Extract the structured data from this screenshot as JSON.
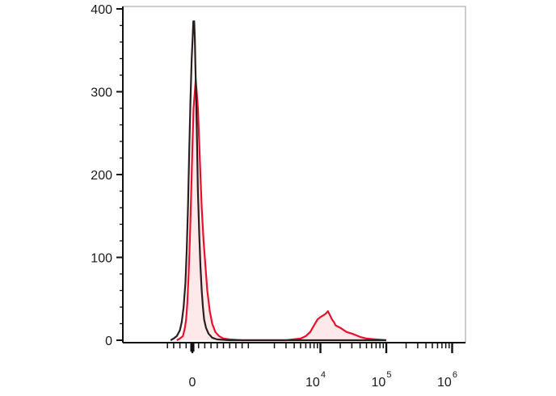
{
  "chart_data": {
    "type": "histogram",
    "title": "",
    "xlabel": "",
    "ylabel": "",
    "x_scale": "biexponential",
    "x_range": [
      -500,
      1000000
    ],
    "y_range": [
      0,
      400
    ],
    "y_ticks": [
      {
        "value": 0,
        "label": "0"
      },
      {
        "value": 100,
        "label": "100"
      },
      {
        "value": 200,
        "label": "200"
      },
      {
        "value": 300,
        "label": "300"
      },
      {
        "value": 400,
        "label": "400"
      }
    ],
    "x_ticks": [
      {
        "value": 0,
        "base": "0",
        "exp": ""
      },
      {
        "value": 10000,
        "base": "10",
        "exp": "4"
      },
      {
        "value": 100000,
        "base": "10",
        "exp": "5"
      },
      {
        "value": 1000000,
        "base": "10",
        "exp": "6"
      }
    ],
    "grid": false,
    "legend": "none",
    "series": [
      {
        "color": "#e8112d",
        "fill": "#fde8ea",
        "points": [
          [
            -250,
            0
          ],
          [
            -200,
            2
          ],
          [
            -150,
            5
          ],
          [
            -120,
            15
          ],
          [
            -100,
            25
          ],
          [
            -80,
            45
          ],
          [
            -60,
            80
          ],
          [
            -40,
            120
          ],
          [
            -20,
            175
          ],
          [
            0,
            230
          ],
          [
            20,
            280
          ],
          [
            40,
            300
          ],
          [
            55,
            315
          ],
          [
            70,
            300
          ],
          [
            90,
            280
          ],
          [
            110,
            240
          ],
          [
            130,
            200
          ],
          [
            150,
            160
          ],
          [
            180,
            120
          ],
          [
            210,
            90
          ],
          [
            240,
            60
          ],
          [
            280,
            35
          ],
          [
            320,
            20
          ],
          [
            370,
            10
          ],
          [
            430,
            5
          ],
          [
            500,
            2
          ],
          [
            600,
            1
          ],
          [
            800,
            0
          ],
          [
            1500,
            0
          ],
          [
            3000,
            0
          ],
          [
            5000,
            2
          ],
          [
            6000,
            5
          ],
          [
            7000,
            10
          ],
          [
            8000,
            18
          ],
          [
            9000,
            25
          ],
          [
            10000,
            28
          ],
          [
            11000,
            30
          ],
          [
            12000,
            32
          ],
          [
            13000,
            35
          ],
          [
            14000,
            30
          ],
          [
            15000,
            25
          ],
          [
            16000,
            22
          ],
          [
            17000,
            18
          ],
          [
            20000,
            15
          ],
          [
            25000,
            10
          ],
          [
            30000,
            8
          ],
          [
            35000,
            6
          ],
          [
            40000,
            4
          ],
          [
            50000,
            2
          ],
          [
            70000,
            1
          ],
          [
            100000,
            0
          ]
        ]
      },
      {
        "color": "#2b1e1e",
        "fill": "none",
        "points": [
          [
            -350,
            0
          ],
          [
            -300,
            2
          ],
          [
            -250,
            5
          ],
          [
            -200,
            12
          ],
          [
            -170,
            22
          ],
          [
            -140,
            40
          ],
          [
            -110,
            70
          ],
          [
            -90,
            110
          ],
          [
            -70,
            160
          ],
          [
            -50,
            230
          ],
          [
            -30,
            290
          ],
          [
            -10,
            340
          ],
          [
            5,
            365
          ],
          [
            15,
            385
          ],
          [
            22,
            378
          ],
          [
            30,
            385
          ],
          [
            40,
            365
          ],
          [
            50,
            330
          ],
          [
            60,
            300
          ],
          [
            75,
            240
          ],
          [
            90,
            180
          ],
          [
            110,
            130
          ],
          [
            130,
            90
          ],
          [
            150,
            60
          ],
          [
            170,
            40
          ],
          [
            190,
            25
          ],
          [
            220,
            15
          ],
          [
            260,
            8
          ],
          [
            320,
            3
          ],
          [
            400,
            1
          ],
          [
            600,
            0
          ],
          [
            1000,
            0
          ],
          [
            5000,
            0
          ],
          [
            100000,
            0
          ]
        ]
      }
    ]
  }
}
